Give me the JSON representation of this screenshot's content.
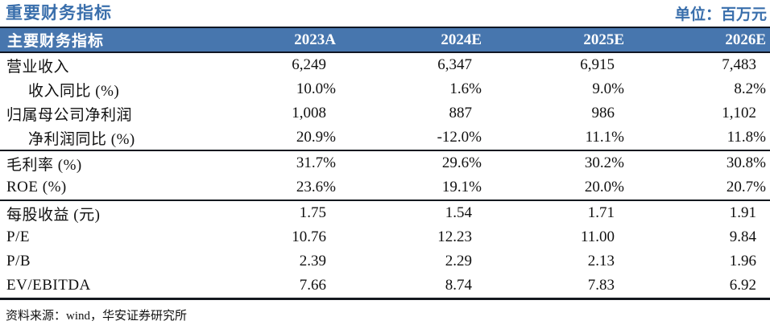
{
  "page": {
    "title": "重要财务指标",
    "unit_label": "单位：百万元"
  },
  "colors": {
    "accent_blue": "#3a6fac",
    "header_bg": "#4776ae",
    "header_text": "#ffffff",
    "border_dark": "#101623",
    "body_text": "#111111"
  },
  "table": {
    "header": {
      "label": "主要财务指标",
      "years": [
        "2023A",
        "2024E",
        "2025E",
        "2026E"
      ]
    },
    "rows": [
      {
        "label": "营业收入",
        "indent": false,
        "type": "number",
        "values": [
          "6,249",
          "6,347",
          "6,915",
          "7,483"
        ]
      },
      {
        "label": "收入同比 (%)",
        "indent": true,
        "type": "percent",
        "values": [
          "10.0%",
          "1.6%",
          "9.0%",
          "8.2%"
        ]
      },
      {
        "label": "归属母公司净利润",
        "indent": false,
        "type": "number",
        "values": [
          "1,008",
          "887",
          "986",
          "1,102"
        ]
      },
      {
        "label": "净利润同比 (%)",
        "indent": true,
        "type": "percent",
        "values": [
          "20.9%",
          "-12.0%",
          "11.1%",
          "11.8%"
        ]
      },
      {
        "label": "毛利率 (%)",
        "indent": false,
        "type": "percent",
        "values": [
          "31.7%",
          "29.6%",
          "30.2%",
          "30.8%"
        ]
      },
      {
        "label": "ROE (%)",
        "indent": false,
        "type": "percent",
        "values": [
          "23.6%",
          "19.1%",
          "20.0%",
          "20.7%"
        ]
      },
      {
        "label": "每股收益 (元)",
        "indent": false,
        "type": "number",
        "values": [
          "1.75",
          "1.54",
          "1.71",
          "1.91"
        ]
      },
      {
        "label": "P/E",
        "indent": false,
        "type": "number",
        "values": [
          "10.76",
          "12.23",
          "11.00",
          "9.84"
        ]
      },
      {
        "label": "P/B",
        "indent": false,
        "type": "number",
        "values": [
          "2.39",
          "2.29",
          "2.13",
          "1.96"
        ]
      },
      {
        "label": "EV/EBITDA",
        "indent": false,
        "type": "number",
        "values": [
          "7.66",
          "8.74",
          "7.83",
          "6.92"
        ]
      }
    ]
  },
  "footer": {
    "source": "资料来源：wind，华安证券研究所"
  }
}
